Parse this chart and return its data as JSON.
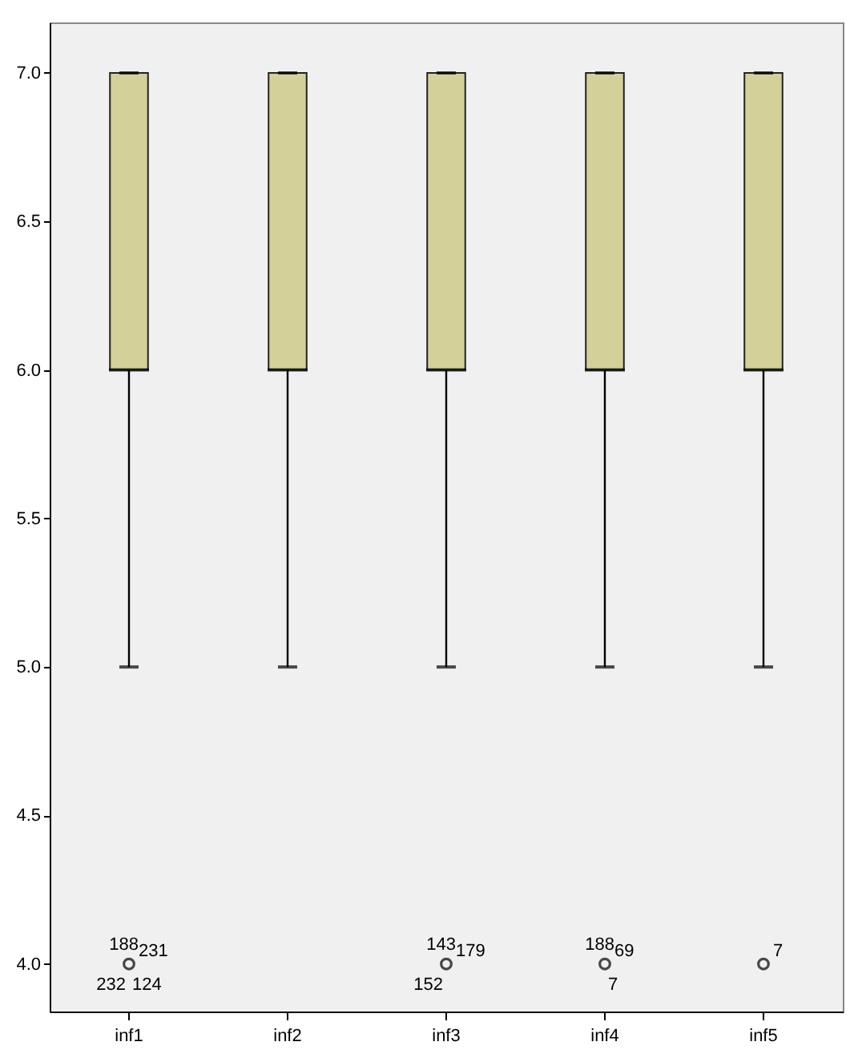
{
  "chart_data": {
    "type": "box",
    "categories": [
      "inf1",
      "inf2",
      "inf3",
      "inf4",
      "inf5"
    ],
    "color": "#d4d09a",
    "boxes": [
      {
        "low": 5,
        "q1": 6,
        "median": 6,
        "q3": 7,
        "high": 7,
        "outliers": [
          4
        ]
      },
      {
        "low": 5,
        "q1": 6,
        "median": 6,
        "q3": 7,
        "high": 7
      },
      {
        "low": 5,
        "q1": 6,
        "median": 6,
        "q3": 7,
        "high": 7,
        "outliers": [
          4
        ]
      },
      {
        "low": 5,
        "q1": 6,
        "median": 6,
        "q3": 7,
        "high": 7,
        "outliers": [
          4
        ]
      },
      {
        "low": 5,
        "q1": 6,
        "median": 6,
        "q3": 7,
        "high": 7,
        "outliers": [
          4
        ]
      }
    ],
    "ylim": [
      3.84,
      7.17
    ],
    "yticks": [
      {
        "value": 4,
        "label": "4.0"
      },
      {
        "value": 4.5,
        "label": "4.5"
      },
      {
        "value": 5,
        "label": "5.0"
      },
      {
        "value": 5.5,
        "label": "5.5"
      },
      {
        "value": 6,
        "label": "6.0"
      },
      {
        "value": 6.5,
        "label": "6.5"
      },
      {
        "value": 7,
        "label": "7.0"
      }
    ],
    "annotations": [
      "188",
      "231",
      "232",
      "124",
      "143",
      "179",
      "152",
      "188",
      "69",
      "7",
      "7"
    ]
  }
}
